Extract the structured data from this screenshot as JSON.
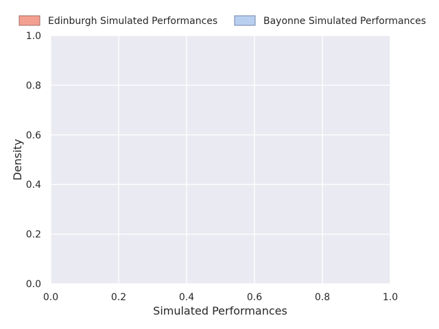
{
  "chart_data": {
    "type": "area",
    "title": "",
    "xlabel": "Simulated Performances",
    "ylabel": "Density",
    "xlim": [
      0.0,
      1.0
    ],
    "ylim": [
      0.0,
      1.0
    ],
    "xticks": [
      "0.0",
      "0.2",
      "0.4",
      "0.6",
      "0.8",
      "1.0"
    ],
    "yticks": [
      "0.0",
      "0.2",
      "0.4",
      "0.6",
      "0.8",
      "1.0"
    ],
    "grid": true,
    "legend_placement": "top",
    "series": [
      {
        "name": "Edinburgh Simulated Performances",
        "color": "#f4a090",
        "edge_color": "#a06a62",
        "values": []
      },
      {
        "name": "Bayonne Simulated Performances",
        "color": "#b9cff0",
        "edge_color": "#6f84a8",
        "values": []
      }
    ],
    "plot_background": "#eaeaf2",
    "grid_color": "#ffffff"
  }
}
